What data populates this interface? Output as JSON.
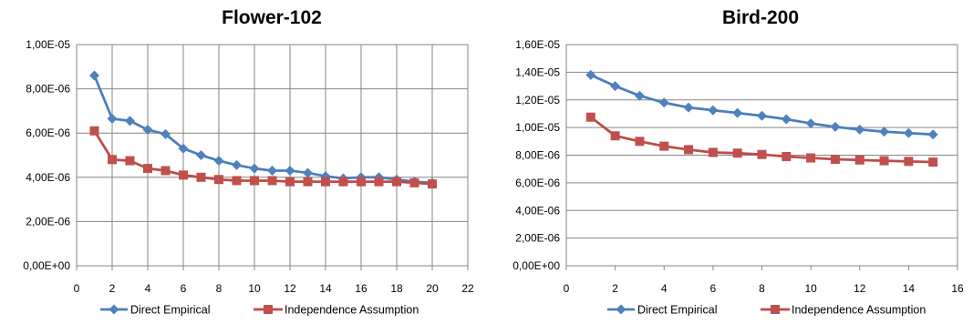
{
  "colors": {
    "series1": "#4a7ebb",
    "series1_marker": "#4f81bd",
    "series2": "#be4b48",
    "series2_marker": "#c0504d",
    "grid": "#868686",
    "axis": "#868686"
  },
  "chart_data": [
    {
      "type": "line",
      "title": "Flower-102",
      "xlabel": "",
      "ylabel": "",
      "xlim": [
        0,
        22
      ],
      "ylim": [
        0,
        1e-05
      ],
      "x_ticks": [
        0,
        2,
        4,
        6,
        8,
        10,
        12,
        14,
        16,
        18,
        20,
        22
      ],
      "x_tick_labels": [
        "0",
        "2",
        "4",
        "6",
        "8",
        "10",
        "12",
        "14",
        "16",
        "18",
        "20",
        "22"
      ],
      "y_ticks": [
        0,
        2e-06,
        4e-06,
        6e-06,
        8e-06,
        1e-05
      ],
      "y_tick_labels": [
        "0,00E+00",
        "2,00E-06",
        "4,00E-06",
        "6,00E-06",
        "8,00E-06",
        "1,00E-05"
      ],
      "grid": "both",
      "legend": "bottom",
      "x": [
        1,
        2,
        3,
        4,
        5,
        6,
        7,
        8,
        9,
        10,
        11,
        12,
        13,
        14,
        15,
        16,
        17,
        18,
        19,
        20
      ],
      "series": [
        {
          "name": "Direct Empirical",
          "marker": "diamond",
          "values": [
            8.6e-06,
            6.65e-06,
            6.55e-06,
            6.15e-06,
            5.95e-06,
            5.3e-06,
            5e-06,
            4.75e-06,
            4.55e-06,
            4.4e-06,
            4.3e-06,
            4.3e-06,
            4.2e-06,
            4.05e-06,
            3.95e-06,
            4e-06,
            4e-06,
            3.9e-06,
            3.8e-06,
            3.75e-06
          ]
        },
        {
          "name": "Independence Assumption",
          "marker": "square",
          "values": [
            6.1e-06,
            4.8e-06,
            4.75e-06,
            4.4e-06,
            4.3e-06,
            4.1e-06,
            4e-06,
            3.9e-06,
            3.85e-06,
            3.85e-06,
            3.85e-06,
            3.8e-06,
            3.8e-06,
            3.8e-06,
            3.8e-06,
            3.8e-06,
            3.8e-06,
            3.8e-06,
            3.75e-06,
            3.7e-06
          ]
        }
      ]
    },
    {
      "type": "line",
      "title": "Bird-200",
      "xlabel": "",
      "ylabel": "",
      "xlim": [
        0,
        16
      ],
      "ylim": [
        0,
        1.6e-05
      ],
      "x_ticks": [
        0,
        2,
        4,
        6,
        8,
        10,
        12,
        14,
        16
      ],
      "x_tick_labels": [
        "0",
        "2",
        "4",
        "6",
        "8",
        "10",
        "12",
        "14",
        "16"
      ],
      "y_ticks": [
        0,
        2e-06,
        4e-06,
        6e-06,
        8e-06,
        1e-05,
        1.2e-05,
        1.4e-05,
        1.6e-05
      ],
      "y_tick_labels": [
        "0,00E+00",
        "2,00E-06",
        "4,00E-06",
        "6,00E-06",
        "8,00E-06",
        "1,00E-05",
        "1,20E-05",
        "1,40E-05",
        "1,60E-05"
      ],
      "grid": "horizontal",
      "legend": "bottom",
      "x": [
        1,
        2,
        3,
        4,
        5,
        6,
        7,
        8,
        9,
        10,
        11,
        12,
        13,
        14,
        15
      ],
      "series": [
        {
          "name": "Direct Empirical",
          "marker": "diamond",
          "values": [
            1.38e-05,
            1.3e-05,
            1.23e-05,
            1.18e-05,
            1.145e-05,
            1.125e-05,
            1.105e-05,
            1.085e-05,
            1.06e-05,
            1.03e-05,
            1.005e-05,
            9.85e-06,
            9.7e-06,
            9.6e-06,
            9.5e-06
          ]
        },
        {
          "name": "Independence Assumption",
          "marker": "square",
          "values": [
            1.075e-05,
            9.4e-06,
            9e-06,
            8.65e-06,
            8.4e-06,
            8.2e-06,
            8.15e-06,
            8.05e-06,
            7.9e-06,
            7.8e-06,
            7.7e-06,
            7.65e-06,
            7.6e-06,
            7.55e-06,
            7.5e-06
          ]
        }
      ]
    }
  ]
}
